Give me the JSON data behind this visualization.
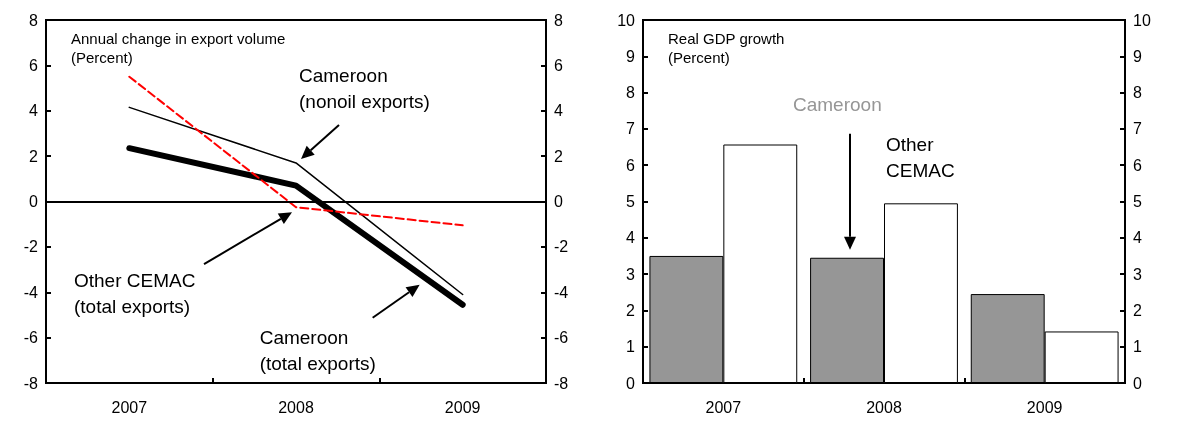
{
  "chart_data": [
    {
      "type": "line",
      "title": "Annual change in export volume",
      "subtitle": "(Percent)",
      "categories": [
        "2007",
        "2008",
        "2009"
      ],
      "series": [
        {
          "name": "Cameroon\n(nonoil exports)",
          "color": "#000000",
          "values": [
            4.15,
            1.7,
            -4.1
          ]
        },
        {
          "name": "Cameroon\n(total exports)",
          "color": "#000000",
          "values": [
            2.35,
            0.7,
            -4.55
          ]
        },
        {
          "name": "Other CEMAC\n(total exports)",
          "color": "#ff0000",
          "values": [
            5.5,
            -0.25,
            -1.05
          ],
          "line_style": "dashed"
        }
      ],
      "ylim": [
        -8,
        8
      ],
      "yticks": [
        -8,
        -6,
        -4,
        -2,
        0,
        2,
        4,
        6,
        8
      ],
      "y2lim": [
        -8,
        8
      ],
      "y2ticks": [
        -8,
        -6,
        -4,
        -2,
        0,
        2,
        4,
        6,
        8
      ],
      "ref_lines": [
        {
          "axis": "y",
          "value": 0,
          "color": "#000000"
        }
      ],
      "line_style": "solid",
      "marker": "none"
    },
    {
      "type": "bar",
      "title": "Real GDP growth",
      "subtitle": "(Percent)",
      "categories": [
        "2007",
        "2008",
        "2009"
      ],
      "series": [
        {
          "name": "Cameroon",
          "color": "#969696",
          "values": [
            3.5,
            3.45,
            2.45
          ]
        },
        {
          "name": "Other\nCEMAC",
          "color": "#ffffff",
          "values": [
            6.57,
            4.95,
            1.42
          ]
        }
      ],
      "ylim": [
        0,
        10
      ],
      "yticks": [
        0,
        1,
        2,
        3,
        4,
        5,
        6,
        7,
        8,
        9,
        10
      ],
      "y2lim": [
        0,
        10
      ],
      "y2ticks": [
        0,
        1,
        2,
        3,
        4,
        5,
        6,
        7,
        8,
        9,
        10
      ]
    }
  ]
}
